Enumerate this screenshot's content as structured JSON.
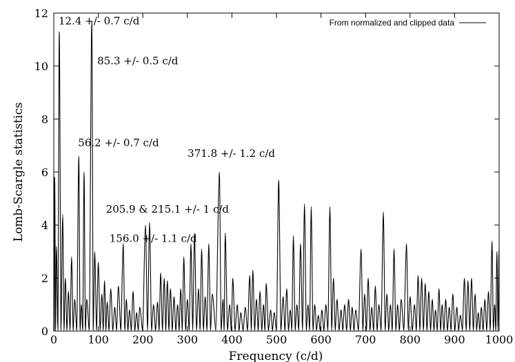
{
  "chart_data": {
    "type": "line",
    "title": "",
    "xlabel": "Frequency (c/d)",
    "ylabel": "Lomb-Scargle statistics",
    "xlim": [
      0,
      1000
    ],
    "ylim": [
      0,
      12
    ],
    "xticks": [
      0,
      100,
      200,
      300,
      400,
      500,
      600,
      700,
      800,
      900,
      1000
    ],
    "yticks": [
      0,
      2,
      4,
      6,
      8,
      10,
      12
    ],
    "grid": false,
    "legend": {
      "position": "top-right",
      "entries": [
        "From normalized and clipped data"
      ]
    },
    "series": [
      {
        "name": "From normalized and clipped data",
        "color": "#000000",
        "peaks": [
          [
            0,
            6.0
          ],
          [
            2,
            5.8
          ],
          [
            6,
            3.2
          ],
          [
            12.4,
            11.3
          ],
          [
            20,
            4.4
          ],
          [
            26,
            2.0
          ],
          [
            33,
            1.5
          ],
          [
            40,
            2.8
          ],
          [
            47,
            1.2
          ],
          [
            56.2,
            6.6
          ],
          [
            62,
            1.0
          ],
          [
            68,
            6.0
          ],
          [
            74,
            1.2
          ],
          [
            85.3,
            11.7
          ],
          [
            92,
            3.0
          ],
          [
            100,
            2.6
          ],
          [
            108,
            1.4
          ],
          [
            114,
            1.9
          ],
          [
            120,
            1.1
          ],
          [
            128,
            1.6
          ],
          [
            137,
            0.9
          ],
          [
            145,
            1.7
          ],
          [
            156,
            3.3
          ],
          [
            163,
            1.2
          ],
          [
            170,
            0.8
          ],
          [
            178,
            1.5
          ],
          [
            186,
            0.7
          ],
          [
            193,
            0.9
          ],
          [
            205.9,
            4.0
          ],
          [
            215.1,
            4.1
          ],
          [
            224,
            1.0
          ],
          [
            233,
            1.1
          ],
          [
            240,
            2.2
          ],
          [
            248,
            2.0
          ],
          [
            255,
            1.9
          ],
          [
            262,
            1.6
          ],
          [
            270,
            1.3
          ],
          [
            278,
            1.0
          ],
          [
            285,
            1.6
          ],
          [
            292,
            2.8
          ],
          [
            300,
            1.2
          ],
          [
            308,
            3.3
          ],
          [
            316,
            3.7
          ],
          [
            325,
            1.6
          ],
          [
            332,
            3.1
          ],
          [
            340,
            1.3
          ],
          [
            348,
            3.3
          ],
          [
            356,
            1.4
          ],
          [
            371.8,
            6.0
          ],
          [
            380,
            1.2
          ],
          [
            385,
            3.7
          ],
          [
            395,
            1.0
          ],
          [
            402,
            2.0
          ],
          [
            412,
            1.0
          ],
          [
            420,
            0.7
          ],
          [
            430,
            0.9
          ],
          [
            440,
            2.1
          ],
          [
            447,
            2.3
          ],
          [
            455,
            1.2
          ],
          [
            463,
            1.5
          ],
          [
            471,
            1.0
          ],
          [
            477,
            1.8
          ],
          [
            487,
            0.8
          ],
          [
            495,
            0.7
          ],
          [
            505,
            5.7
          ],
          [
            515,
            1.3
          ],
          [
            523,
            1.6
          ],
          [
            531,
            0.8
          ],
          [
            538,
            3.6
          ],
          [
            546,
            1.0
          ],
          [
            554,
            3.3
          ],
          [
            563,
            4.8
          ],
          [
            571,
            1.0
          ],
          [
            578,
            4.7
          ],
          [
            586,
            1.0
          ],
          [
            594,
            0.6
          ],
          [
            602,
            0.8
          ],
          [
            611,
            1.0
          ],
          [
            620,
            4.7
          ],
          [
            628,
            2.0
          ],
          [
            636,
            1.2
          ],
          [
            645,
            0.8
          ],
          [
            653,
            1.0
          ],
          [
            662,
            1.2
          ],
          [
            670,
            0.9
          ],
          [
            678,
            0.8
          ],
          [
            690,
            3.1
          ],
          [
            698,
            1.4
          ],
          [
            706,
            2.0
          ],
          [
            714,
            0.9
          ],
          [
            722,
            1.7
          ],
          [
            730,
            1.0
          ],
          [
            740,
            4.5
          ],
          [
            748,
            1.4
          ],
          [
            756,
            1.0
          ],
          [
            764,
            3.1
          ],
          [
            772,
            1.0
          ],
          [
            780,
            1.2
          ],
          [
            792,
            3.3
          ],
          [
            800,
            1.3
          ],
          [
            810,
            1.0
          ],
          [
            818,
            2.1
          ],
          [
            826,
            2.0
          ],
          [
            834,
            1.8
          ],
          [
            842,
            1.5
          ],
          [
            850,
            1.2
          ],
          [
            857,
            0.8
          ],
          [
            865,
            1.6
          ],
          [
            872,
            1.0
          ],
          [
            880,
            1.2
          ],
          [
            888,
            0.9
          ],
          [
            896,
            1.4
          ],
          [
            905,
            0.9
          ],
          [
            913,
            0.6
          ],
          [
            922,
            2.0
          ],
          [
            930,
            1.9
          ],
          [
            938,
            2.0
          ],
          [
            946,
            1.4
          ],
          [
            953,
            0.7
          ],
          [
            960,
            0.9
          ],
          [
            968,
            1.2
          ],
          [
            976,
            1.5
          ],
          [
            984,
            3.4
          ],
          [
            990,
            1.0
          ],
          [
            995,
            3.0
          ],
          [
            1000,
            3.2
          ]
        ]
      }
    ],
    "annotations": [
      {
        "text": "12.4 +/- 0.7 c/d",
        "x": 12.4,
        "y": 11.7
      },
      {
        "text": "85.3 +/- 0.5 c/d",
        "x": 85.3,
        "y": 10.2
      },
      {
        "text": "56.2 +/- 0.7 c/d",
        "x": 56.2,
        "y": 7.1
      },
      {
        "text": "371.8 +/- 1.2 c/d",
        "x": 371.8,
        "y": 6.7
      },
      {
        "text": "205.9 & 215.1 +/- 1 c/d",
        "x": 210,
        "y": 4.6
      },
      {
        "text": "156.0 +/- 1.1 c/d",
        "x": 156,
        "y": 3.5
      }
    ]
  }
}
